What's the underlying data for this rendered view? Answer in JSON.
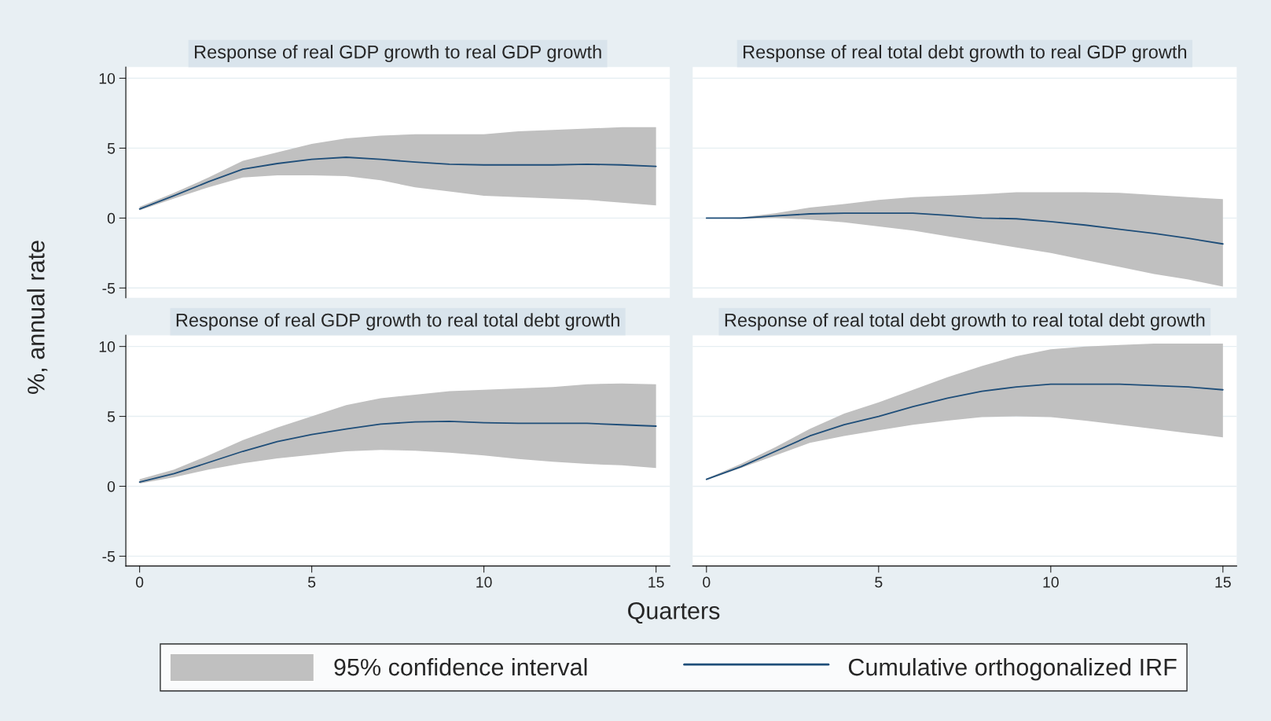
{
  "chart_data": [
    {
      "type": "line",
      "title": "Response of real GDP growth to real GDP growth",
      "ylabel": "%, annual rate",
      "annotations": [
        "95% confidence interval"
      ],
      "x": [
        0,
        1,
        2,
        3,
        4,
        5,
        6,
        7,
        8,
        9,
        10,
        11,
        12,
        13,
        14,
        15
      ],
      "xlim": [
        -0.4,
        15.4
      ],
      "ylim": [
        -5.7,
        10.8
      ],
      "xticks": [
        0,
        5,
        10,
        15
      ],
      "yticks": [
        -5,
        0,
        5,
        10
      ],
      "tick_labels": "y",
      "grid": "y",
      "legend": "bottom",
      "series": [
        {
          "name": "Cumulative orthogonalized IRF",
          "color": "#1f4e79",
          "values": [
            0.65,
            1.6,
            2.6,
            3.5,
            3.9,
            4.2,
            4.35,
            4.2,
            4.0,
            3.85,
            3.8,
            3.8,
            3.8,
            3.85,
            3.8,
            3.7
          ],
          "lower": [
            0.55,
            1.4,
            2.2,
            2.9,
            3.05,
            3.05,
            3.0,
            2.7,
            2.2,
            1.9,
            1.6,
            1.5,
            1.4,
            1.3,
            1.1,
            0.9
          ],
          "upper": [
            0.8,
            1.8,
            2.9,
            4.1,
            4.7,
            5.3,
            5.7,
            5.9,
            6.0,
            6.0,
            6.0,
            6.2,
            6.3,
            6.4,
            6.5,
            6.5
          ]
        }
      ]
    },
    {
      "type": "line",
      "title": "Response of real total debt growth to real GDP growth",
      "x": [
        0,
        1,
        2,
        3,
        4,
        5,
        6,
        7,
        8,
        9,
        10,
        11,
        12,
        13,
        14,
        15
      ],
      "xlim": [
        -0.4,
        15.4
      ],
      "ylim": [
        -5.7,
        10.8
      ],
      "xticks": [
        0,
        5,
        10,
        15
      ],
      "yticks": [
        -5,
        0,
        5,
        10
      ],
      "tick_labels": false,
      "grid": "y",
      "series": [
        {
          "color": "#1f4e79",
          "values": [
            0,
            0,
            0.15,
            0.3,
            0.35,
            0.35,
            0.35,
            0.2,
            0,
            -0.05,
            -0.25,
            -0.5,
            -0.8,
            -1.1,
            -1.45,
            -1.85
          ],
          "lower": [
            0,
            -0.05,
            0,
            -0.1,
            -0.3,
            -0.6,
            -0.9,
            -1.3,
            -1.7,
            -2.1,
            -2.5,
            -3.0,
            -3.5,
            -4.0,
            -4.4,
            -4.9
          ],
          "upper": [
            0,
            0.05,
            0.35,
            0.75,
            1.0,
            1.3,
            1.5,
            1.6,
            1.7,
            1.85,
            1.85,
            1.85,
            1.8,
            1.65,
            1.5,
            1.35
          ]
        }
      ]
    },
    {
      "type": "line",
      "title": "Response of real GDP growth to real total debt growth",
      "xlabel": "Quarters",
      "x": [
        0,
        1,
        2,
        3,
        4,
        5,
        6,
        7,
        8,
        9,
        10,
        11,
        12,
        13,
        14,
        15
      ],
      "xlim": [
        -0.4,
        15.4
      ],
      "ylim": [
        -5.7,
        10.8
      ],
      "xticks": [
        0,
        5,
        10,
        15
      ],
      "yticks": [
        -5,
        0,
        5,
        10
      ],
      "grid": "y",
      "series": [
        {
          "color": "#1f4e79",
          "values": [
            0.3,
            0.9,
            1.7,
            2.5,
            3.2,
            3.7,
            4.1,
            4.45,
            4.6,
            4.65,
            4.55,
            4.5,
            4.5,
            4.5,
            4.4,
            4.3
          ],
          "lower": [
            0.2,
            0.65,
            1.2,
            1.65,
            2.0,
            2.25,
            2.5,
            2.6,
            2.55,
            2.4,
            2.2,
            1.95,
            1.75,
            1.6,
            1.5,
            1.3
          ],
          "upper": [
            0.5,
            1.2,
            2.2,
            3.3,
            4.2,
            5.0,
            5.8,
            6.3,
            6.55,
            6.8,
            6.9,
            7.0,
            7.1,
            7.3,
            7.35,
            7.3
          ]
        }
      ]
    },
    {
      "type": "line",
      "title": "Response of real total debt growth to real total debt growth",
      "x": [
        0,
        1,
        2,
        3,
        4,
        5,
        6,
        7,
        8,
        9,
        10,
        11,
        12,
        13,
        14,
        15
      ],
      "xlim": [
        -0.4,
        15.4
      ],
      "ylim": [
        -5.7,
        10.8
      ],
      "xticks": [
        0,
        5,
        10,
        15
      ],
      "yticks": [
        -5,
        0,
        5,
        10
      ],
      "tick_labels": "x",
      "grid": "y",
      "series": [
        {
          "color": "#1f4e79",
          "values": [
            0.5,
            1.4,
            2.5,
            3.6,
            4.4,
            5.0,
            5.7,
            6.3,
            6.8,
            7.1,
            7.3,
            7.3,
            7.3,
            7.2,
            7.1,
            6.9
          ],
          "lower": [
            0.45,
            1.3,
            2.2,
            3.1,
            3.6,
            4.0,
            4.4,
            4.7,
            4.95,
            5.0,
            4.95,
            4.7,
            4.4,
            4.1,
            3.8,
            3.5
          ],
          "upper": [
            0.55,
            1.6,
            2.8,
            4.1,
            5.2,
            6.0,
            6.9,
            7.8,
            8.6,
            9.3,
            9.8,
            10.0,
            10.1,
            10.2,
            10.2,
            10.2
          ]
        }
      ]
    }
  ]
}
